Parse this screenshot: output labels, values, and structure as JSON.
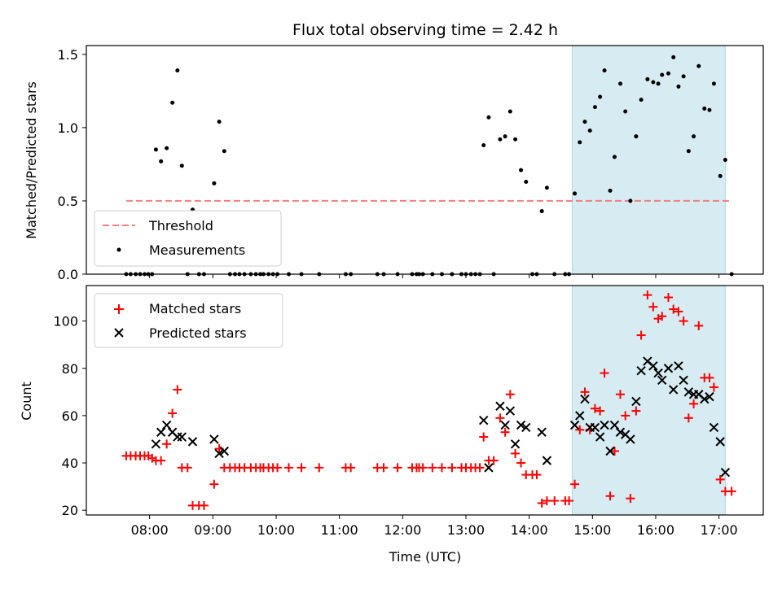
{
  "chart_data": {
    "title": "Flux total observing time = 2.42 h",
    "xlabel": "Time (UTC)",
    "x_ticks": [
      "08:00",
      "09:00",
      "10:00",
      "11:00",
      "12:00",
      "13:00",
      "14:00",
      "15:00",
      "16:00",
      "17:00"
    ],
    "x_tick_hours": [
      8,
      9,
      10,
      11,
      12,
      13,
      14,
      15,
      16,
      17
    ],
    "xlim": [
      7.0,
      17.7
    ],
    "highlight_span": [
      14.68,
      17.1
    ],
    "colors": {
      "highlight": "#add8e6",
      "threshold": "#f08080",
      "matched": "#ff0000",
      "predicted": "#000000",
      "measurement": "#000000"
    },
    "top": {
      "type": "scatter",
      "ylabel": "Matched/Predicted stars",
      "ylim": [
        0,
        1.56
      ],
      "y_ticks": [
        0.0,
        0.5,
        1.0,
        1.5
      ],
      "y_tick_labels": [
        "0.0",
        "0.5",
        "1.0",
        "1.5"
      ],
      "threshold": {
        "value": 0.5,
        "x_range": [
          7.63,
          17.2
        ]
      },
      "legend": {
        "threshold_label": "Threshold",
        "measurements_label": "Measurements",
        "location": "lower-left"
      },
      "measurements": [
        [
          7.63,
          0
        ],
        [
          7.7,
          0
        ],
        [
          7.78,
          0
        ],
        [
          7.85,
          0
        ],
        [
          7.92,
          0
        ],
        [
          7.98,
          0
        ],
        [
          8.04,
          0
        ],
        [
          8.1,
          0.85
        ],
        [
          8.18,
          0.77
        ],
        [
          8.27,
          0.86
        ],
        [
          8.36,
          1.17
        ],
        [
          8.44,
          1.39
        ],
        [
          8.51,
          0.74
        ],
        [
          8.6,
          0
        ],
        [
          8.68,
          0.44
        ],
        [
          8.78,
          0
        ],
        [
          8.86,
          0
        ],
        [
          9.02,
          0.62
        ],
        [
          9.1,
          1.04
        ],
        [
          9.18,
          0.84
        ],
        [
          9.27,
          0
        ],
        [
          9.35,
          0
        ],
        [
          9.42,
          0
        ],
        [
          9.5,
          0
        ],
        [
          9.6,
          0
        ],
        [
          9.68,
          0
        ],
        [
          9.75,
          0
        ],
        [
          9.8,
          0
        ],
        [
          9.88,
          0
        ],
        [
          9.95,
          0
        ],
        [
          10.02,
          0
        ],
        [
          10.2,
          0
        ],
        [
          10.4,
          0
        ],
        [
          10.68,
          0
        ],
        [
          11.1,
          0
        ],
        [
          11.18,
          0
        ],
        [
          11.6,
          0
        ],
        [
          11.7,
          0
        ],
        [
          11.92,
          0
        ],
        [
          12.15,
          0
        ],
        [
          12.22,
          0
        ],
        [
          12.26,
          0
        ],
        [
          12.32,
          0
        ],
        [
          12.47,
          0
        ],
        [
          12.62,
          0
        ],
        [
          12.78,
          0
        ],
        [
          12.93,
          0
        ],
        [
          13.0,
          0
        ],
        [
          13.08,
          0
        ],
        [
          13.15,
          0
        ],
        [
          13.22,
          0
        ],
        [
          13.28,
          0.88
        ],
        [
          13.36,
          1.07
        ],
        [
          13.44,
          0
        ],
        [
          13.54,
          0.92
        ],
        [
          13.62,
          0.94
        ],
        [
          13.7,
          1.11
        ],
        [
          13.78,
          0.92
        ],
        [
          13.87,
          0.71
        ],
        [
          13.95,
          0.63
        ],
        [
          14.05,
          0
        ],
        [
          14.12,
          0
        ],
        [
          14.2,
          0.43
        ],
        [
          14.28,
          0.59
        ],
        [
          14.4,
          0
        ],
        [
          14.57,
          0
        ],
        [
          14.63,
          0
        ],
        [
          14.72,
          0.55
        ],
        [
          14.8,
          0.9
        ],
        [
          14.88,
          1.04
        ],
        [
          14.96,
          0.98
        ],
        [
          15.04,
          1.14
        ],
        [
          15.12,
          1.21
        ],
        [
          15.19,
          1.39
        ],
        [
          15.28,
          0.57
        ],
        [
          15.35,
          0.8
        ],
        [
          15.44,
          1.3
        ],
        [
          15.52,
          1.11
        ],
        [
          15.6,
          0.5
        ],
        [
          15.69,
          0.94
        ],
        [
          15.77,
          1.19
        ],
        [
          15.87,
          1.33
        ],
        [
          15.96,
          1.31
        ],
        [
          16.04,
          1.3
        ],
        [
          16.1,
          1.36
        ],
        [
          16.2,
          1.37
        ],
        [
          16.28,
          1.48
        ],
        [
          16.36,
          1.28
        ],
        [
          16.44,
          1.35
        ],
        [
          16.52,
          0.84
        ],
        [
          16.6,
          0.94
        ],
        [
          16.68,
          1.42
        ],
        [
          16.77,
          1.13
        ],
        [
          16.85,
          1.12
        ],
        [
          16.92,
          1.3
        ],
        [
          17.02,
          0.67
        ],
        [
          17.1,
          0.78
        ],
        [
          17.2,
          0
        ]
      ]
    },
    "bottom": {
      "type": "scatter",
      "ylabel": "Count",
      "ylim": [
        18,
        115
      ],
      "y_ticks": [
        20,
        40,
        60,
        80,
        100
      ],
      "y_tick_labels": [
        "20",
        "40",
        "60",
        "80",
        "100"
      ],
      "legend": {
        "matched_label": "Matched stars",
        "predicted_label": "Predicted stars",
        "location": "upper-left"
      },
      "matched": [
        [
          7.63,
          43
        ],
        [
          7.7,
          43
        ],
        [
          7.78,
          43
        ],
        [
          7.85,
          43
        ],
        [
          7.92,
          43
        ],
        [
          7.98,
          43
        ],
        [
          8.04,
          42
        ],
        [
          8.1,
          41
        ],
        [
          8.18,
          41
        ],
        [
          8.27,
          48
        ],
        [
          8.36,
          61
        ],
        [
          8.44,
          71
        ],
        [
          8.51,
          38
        ],
        [
          8.6,
          38
        ],
        [
          8.68,
          22
        ],
        [
          8.78,
          22
        ],
        [
          8.86,
          22
        ],
        [
          9.02,
          31
        ],
        [
          9.1,
          46
        ],
        [
          9.18,
          38
        ],
        [
          9.27,
          38
        ],
        [
          9.35,
          38
        ],
        [
          9.42,
          38
        ],
        [
          9.5,
          38
        ],
        [
          9.6,
          38
        ],
        [
          9.68,
          38
        ],
        [
          9.75,
          38
        ],
        [
          9.8,
          38
        ],
        [
          9.88,
          38
        ],
        [
          9.95,
          38
        ],
        [
          10.02,
          38
        ],
        [
          10.2,
          38
        ],
        [
          10.4,
          38
        ],
        [
          10.68,
          38
        ],
        [
          11.1,
          38
        ],
        [
          11.18,
          38
        ],
        [
          11.6,
          38
        ],
        [
          11.7,
          38
        ],
        [
          11.92,
          38
        ],
        [
          12.15,
          38
        ],
        [
          12.22,
          38
        ],
        [
          12.26,
          38
        ],
        [
          12.32,
          38
        ],
        [
          12.47,
          38
        ],
        [
          12.62,
          38
        ],
        [
          12.78,
          38
        ],
        [
          12.93,
          38
        ],
        [
          13.0,
          38
        ],
        [
          13.08,
          38
        ],
        [
          13.15,
          38
        ],
        [
          13.22,
          38
        ],
        [
          13.28,
          51
        ],
        [
          13.36,
          41
        ],
        [
          13.44,
          41
        ],
        [
          13.54,
          59
        ],
        [
          13.62,
          53
        ],
        [
          13.7,
          69
        ],
        [
          13.78,
          44
        ],
        [
          13.87,
          40
        ],
        [
          13.95,
          35
        ],
        [
          14.05,
          35
        ],
        [
          14.12,
          35
        ],
        [
          14.2,
          23
        ],
        [
          14.28,
          24
        ],
        [
          14.4,
          24
        ],
        [
          14.57,
          24
        ],
        [
          14.63,
          24
        ],
        [
          14.72,
          31
        ],
        [
          14.8,
          54
        ],
        [
          14.88,
          70
        ],
        [
          14.96,
          54
        ],
        [
          15.04,
          63
        ],
        [
          15.12,
          62
        ],
        [
          15.19,
          78
        ],
        [
          15.28,
          26
        ],
        [
          15.35,
          45
        ],
        [
          15.44,
          69
        ],
        [
          15.52,
          60
        ],
        [
          15.6,
          25
        ],
        [
          15.69,
          62
        ],
        [
          15.77,
          94
        ],
        [
          15.87,
          111
        ],
        [
          15.96,
          106
        ],
        [
          16.04,
          101
        ],
        [
          16.1,
          102
        ],
        [
          16.2,
          110
        ],
        [
          16.28,
          105
        ],
        [
          16.36,
          104
        ],
        [
          16.44,
          100
        ],
        [
          16.52,
          59
        ],
        [
          16.6,
          65
        ],
        [
          16.68,
          98
        ],
        [
          16.77,
          76
        ],
        [
          16.85,
          76
        ],
        [
          16.92,
          72
        ],
        [
          17.02,
          33
        ],
        [
          17.1,
          28
        ],
        [
          17.2,
          28
        ]
      ],
      "predicted": [
        [
          8.1,
          48
        ],
        [
          8.18,
          53
        ],
        [
          8.27,
          56
        ],
        [
          8.36,
          53
        ],
        [
          8.44,
          51
        ],
        [
          8.51,
          51
        ],
        [
          8.68,
          49
        ],
        [
          9.02,
          50
        ],
        [
          9.1,
          44
        ],
        [
          9.18,
          45
        ],
        [
          13.28,
          58
        ],
        [
          13.36,
          38
        ],
        [
          13.54,
          64
        ],
        [
          13.62,
          56
        ],
        [
          13.7,
          62
        ],
        [
          13.78,
          48
        ],
        [
          13.87,
          56
        ],
        [
          13.95,
          55
        ],
        [
          14.2,
          53
        ],
        [
          14.28,
          41
        ],
        [
          14.72,
          56
        ],
        [
          14.8,
          60
        ],
        [
          14.88,
          67
        ],
        [
          14.96,
          55
        ],
        [
          15.04,
          55
        ],
        [
          15.12,
          51
        ],
        [
          15.19,
          56
        ],
        [
          15.28,
          45
        ],
        [
          15.35,
          56
        ],
        [
          15.44,
          53
        ],
        [
          15.52,
          52
        ],
        [
          15.6,
          50
        ],
        [
          15.69,
          66
        ],
        [
          15.77,
          79
        ],
        [
          15.87,
          83
        ],
        [
          15.96,
          81
        ],
        [
          16.04,
          78
        ],
        [
          16.1,
          75
        ],
        [
          16.2,
          80
        ],
        [
          16.28,
          71
        ],
        [
          16.36,
          81
        ],
        [
          16.44,
          75
        ],
        [
          16.52,
          70
        ],
        [
          16.6,
          69
        ],
        [
          16.68,
          69
        ],
        [
          16.77,
          67
        ],
        [
          16.85,
          68
        ],
        [
          16.92,
          55
        ],
        [
          17.02,
          49
        ],
        [
          17.1,
          36
        ]
      ]
    }
  }
}
